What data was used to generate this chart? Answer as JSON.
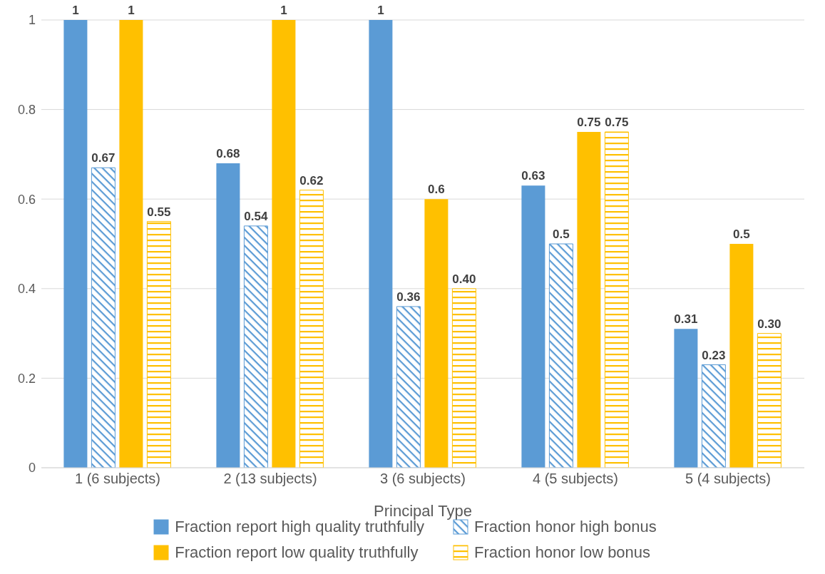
{
  "chart_data": {
    "type": "bar",
    "xlabel": "Principal Type",
    "categories": [
      "1 (6 subjects)",
      "2 (13 subjects)",
      "3 (6 subjects)",
      "4 (5 subjects)",
      "5 (4 subjects)"
    ],
    "series": [
      {
        "name": "Fraction report high quality truthfully",
        "color": "#5b9bd5",
        "values": [
          1,
          0.68,
          1,
          0.63,
          0.31
        ],
        "value_labels": [
          "1",
          "0.68",
          "1",
          "0.63",
          "0.31"
        ]
      },
      {
        "name": "Fraction honor high bonus",
        "color": "#5b9bd5",
        "values": [
          0.67,
          0.54,
          0.36,
          0.5,
          0.23
        ],
        "value_labels": [
          "0.67",
          "0.54",
          "0.36",
          "0.5",
          "0.23"
        ]
      },
      {
        "name": "Fraction report low quality truthfully",
        "color": "#ffc000",
        "values": [
          1,
          1,
          0.6,
          0.75,
          0.5
        ],
        "value_labels": [
          "1",
          "1",
          "0.6",
          "0.75",
          "0.5"
        ]
      },
      {
        "name": "Fraction honor low bonus",
        "color": "#ffc000",
        "values": [
          0.55,
          0.62,
          0.4,
          0.75,
          0.3
        ],
        "value_labels": [
          "0.55",
          "0.62",
          "0.40",
          "0.75",
          "0.30"
        ]
      }
    ],
    "ylim": [
      0,
      1
    ],
    "yticks": [
      0,
      0.2,
      0.4,
      0.6,
      0.8,
      1
    ],
    "grid": "y",
    "legend": "bottom"
  }
}
